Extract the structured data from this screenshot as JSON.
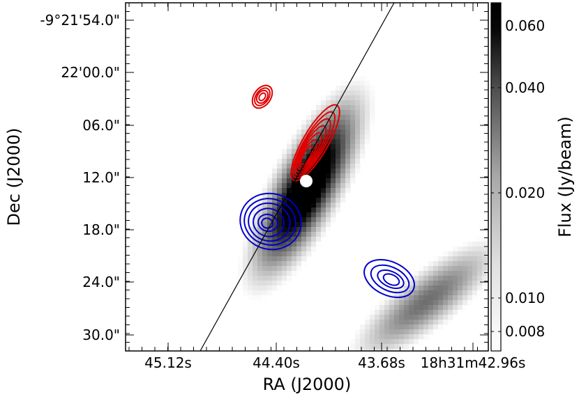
{
  "chart_data": {
    "type": "heatmap",
    "title": "",
    "xlabel": "RA (J2000)",
    "ylabel": "Dec (J2000)",
    "x_ticks": [
      "45.12s",
      "44.40s",
      "43.68s",
      "18h31m42.96s"
    ],
    "y_ticks": [
      "-9°21'54.0\"",
      "22'00.0\"",
      "06.0\"",
      "12.0\"",
      "18.0\"",
      "24.0\"",
      "30.0\""
    ],
    "colorbar": {
      "label": "Flux (Jy/beam)",
      "ticks": [
        "0.060",
        "0.040",
        "0.020",
        "0.010",
        "0.008"
      ],
      "range": [
        0.007,
        0.065
      ],
      "scale": "log"
    },
    "grid": false,
    "series": [
      {
        "color": "#000000",
        "shape": "grayscale emission map"
      },
      {
        "color": "#e00000",
        "shape": "contours"
      },
      {
        "color": "#0000cc",
        "shape": "contours"
      }
    ],
    "colors": {
      "red_contours": "#e00000",
      "blue_contours": "#0000cc",
      "line": "#000000",
      "marker": "#ffffff"
    }
  }
}
